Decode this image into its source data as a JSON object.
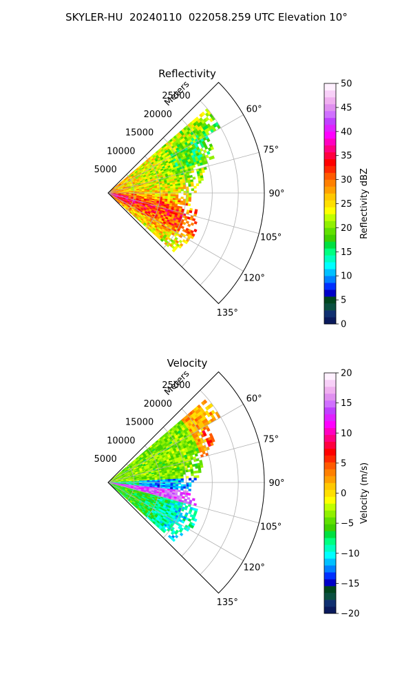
{
  "figure": {
    "suptitle": "SKYLER-HU  20240110  022058.259 UTC Elevation 10°"
  },
  "chart_data": [
    {
      "type": "heatmap",
      "subtype": "polar-sector",
      "title": "Reflectivity",
      "radial_label": "Meters",
      "radial_ticks": [
        5000,
        10000,
        15000,
        20000,
        25000
      ],
      "radial_tick_labels": [
        "5000",
        "10000",
        "15000",
        "20000",
        "25000"
      ],
      "rlim": [
        0,
        30000
      ],
      "azimuth_range_deg": [
        45,
        135
      ],
      "azimuth_ticks_deg": [
        60,
        75,
        90,
        105,
        120,
        135
      ],
      "azimuth_tick_labels": [
        "60°",
        "75°",
        "90°",
        "105°",
        "120°",
        "135°"
      ],
      "grid": true,
      "colorbar": {
        "label": "Reflectivity dBZ",
        "range": [
          0,
          50
        ],
        "ticks": [
          0,
          5,
          10,
          15,
          20,
          25,
          30,
          35,
          40,
          45,
          50
        ],
        "tick_labels": [
          "0",
          "5",
          "10",
          "15",
          "20",
          "25",
          "30",
          "35",
          "40",
          "45",
          "50"
        ],
        "colors": [
          "#0a1a5c",
          "#103070",
          "#0a5040",
          "#00461e",
          "#0000c8",
          "#0030ff",
          "#0080ff",
          "#00c0ff",
          "#00ffff",
          "#00ffc0",
          "#00ff80",
          "#00e040",
          "#40d000",
          "#60e000",
          "#90f000",
          "#c0ff00",
          "#ffff00",
          "#ffe000",
          "#ffc800",
          "#ffa000",
          "#ff8000",
          "#ff5a00",
          "#ff2800",
          "#ff0000",
          "#ff0040",
          "#ff0080",
          "#ff00c0",
          "#ff00ff",
          "#e020ff",
          "#c040ff",
          "#d070ff",
          "#e090f0",
          "#f0b0f0",
          "#f8d0f8",
          "#fff0ff"
        ]
      },
      "field": {
        "source_range_m": [
          0,
          25000
        ],
        "azimuth_extent_deg": [
          45,
          132
        ],
        "mean_profile": [
          {
            "range_m": 2000,
            "azimuth_deg": 90,
            "value": 30
          },
          {
            "range_m": 10000,
            "azimuth_deg": 75,
            "value": 26
          },
          {
            "range_m": 12000,
            "azimuth_deg": 105,
            "value": 33
          },
          {
            "range_m": 20000,
            "azimuth_deg": 62,
            "value": 20
          },
          {
            "range_m": 18000,
            "azimuth_deg": 118,
            "value": 31
          }
        ]
      }
    },
    {
      "type": "heatmap",
      "subtype": "polar-sector",
      "title": "Velocity",
      "radial_label": "Meters",
      "radial_ticks": [
        5000,
        10000,
        15000,
        20000,
        25000
      ],
      "radial_tick_labels": [
        "5000",
        "10000",
        "15000",
        "20000",
        "25000"
      ],
      "rlim": [
        0,
        30000
      ],
      "azimuth_range_deg": [
        45,
        135
      ],
      "azimuth_ticks_deg": [
        60,
        75,
        90,
        105,
        120,
        135
      ],
      "azimuth_tick_labels": [
        "60°",
        "75°",
        "90°",
        "105°",
        "120°",
        "135°"
      ],
      "grid": true,
      "colorbar": {
        "label": "Velocity (m/s)",
        "range": [
          -20,
          20
        ],
        "ticks": [
          -20,
          -15,
          -10,
          -5,
          0,
          5,
          10,
          15,
          20
        ],
        "tick_labels": [
          "−20",
          "−15",
          "−10",
          "−5",
          "0",
          "5",
          "10",
          "15",
          "20"
        ],
        "colors": [
          "#0a1a5c",
          "#103070",
          "#0a5040",
          "#00461e",
          "#0000c8",
          "#0030ff",
          "#0080ff",
          "#00c0ff",
          "#00ffff",
          "#00ffc0",
          "#00ff80",
          "#00e040",
          "#40d000",
          "#60e000",
          "#90f000",
          "#c0ff00",
          "#ffff00",
          "#ffe000",
          "#ffc800",
          "#ffa000",
          "#ff8000",
          "#ff5a00",
          "#ff2800",
          "#ff0000",
          "#ff0040",
          "#ff0080",
          "#ff00c0",
          "#ff00ff",
          "#e020ff",
          "#c040ff",
          "#d070ff",
          "#e090f0",
          "#f0b0f0",
          "#f8d0f8",
          "#fff0ff"
        ]
      },
      "field": {
        "source_range_m": [
          0,
          25000
        ],
        "azimuth_extent_deg": [
          45,
          132
        ],
        "mean_profile": [
          {
            "range_m": 10000,
            "azimuth_deg": 70,
            "value": -3
          },
          {
            "range_m": 10000,
            "azimuth_deg": 92,
            "value": -11
          },
          {
            "range_m": 12000,
            "azimuth_deg": 100,
            "value": 15
          },
          {
            "range_m": 15000,
            "azimuth_deg": 115,
            "value": -7
          },
          {
            "range_m": 22000,
            "azimuth_deg": 70,
            "value": 5
          }
        ]
      }
    }
  ]
}
